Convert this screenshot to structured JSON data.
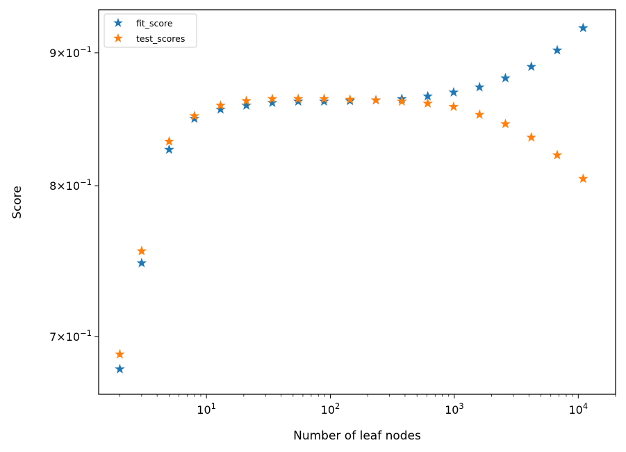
{
  "chart_data": {
    "type": "scatter",
    "title": "",
    "xlabel": "Number of leaf nodes",
    "ylabel": "Score",
    "xscale": "log",
    "yscale": "log",
    "xlim": [
      1.35,
      20000
    ],
    "ylim": [
      0.665,
      0.935
    ],
    "grid": false,
    "legend_position": "top-left",
    "marker": "star",
    "x_ticks": [
      {
        "value": 10,
        "base": "10",
        "exp": "1"
      },
      {
        "value": 100,
        "base": "10",
        "exp": "2"
      },
      {
        "value": 1000,
        "base": "10",
        "exp": "3"
      },
      {
        "value": 10000,
        "base": "10",
        "exp": "4"
      }
    ],
    "y_ticks": [
      {
        "value": 0.7,
        "mant": "7",
        "base": "10",
        "exp": "−1"
      },
      {
        "value": 0.8,
        "mant": "8",
        "base": "10",
        "exp": "−1"
      },
      {
        "value": 0.9,
        "mant": "9",
        "base": "10",
        "exp": "−1"
      }
    ],
    "x": [
      2,
      3,
      5,
      8,
      13,
      21,
      34,
      55,
      89,
      144,
      233,
      377,
      610,
      987,
      1597,
      2584,
      4181,
      6765,
      10946
    ],
    "series": [
      {
        "name": "fit_score",
        "color": "#1f77b4",
        "values": [
          0.68,
          0.747,
          0.826,
          0.849,
          0.856,
          0.859,
          0.861,
          0.862,
          0.862,
          0.8625,
          0.863,
          0.864,
          0.866,
          0.869,
          0.873,
          0.88,
          0.889,
          0.902,
          0.92
        ]
      },
      {
        "name": "test_scores",
        "color": "#ff7f0e",
        "values": [
          0.689,
          0.755,
          0.832,
          0.851,
          0.859,
          0.8625,
          0.864,
          0.864,
          0.864,
          0.8635,
          0.863,
          0.862,
          0.8605,
          0.858,
          0.852,
          0.845,
          0.835,
          0.822,
          0.805
        ]
      }
    ]
  }
}
